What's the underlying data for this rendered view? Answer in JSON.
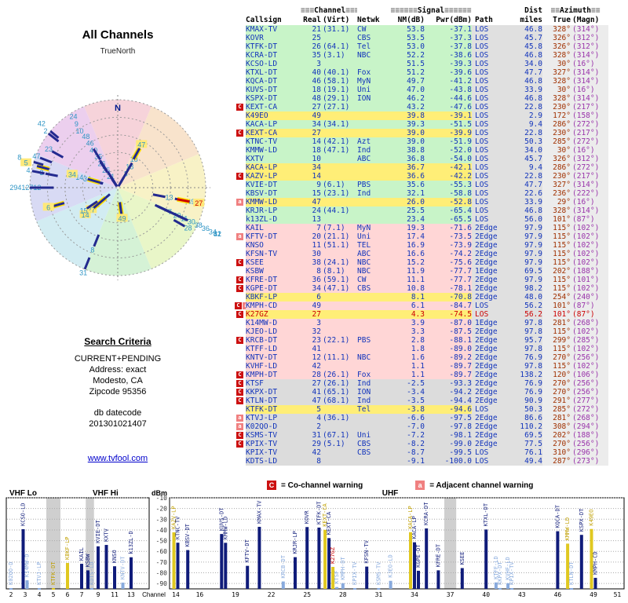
{
  "left_panel": {
    "title": "All Channels",
    "north_label": "TrueNorth",
    "compass_n": "N",
    "search_criteria": {
      "heading": "Search Criteria",
      "lines": [
        "CURRENT+PENDING",
        "Address: exact",
        "Modesto, CA",
        "Zipcode 95356"
      ],
      "db_label": "db datecode",
      "db_value": "201301021407",
      "link": "www.tvfool.com"
    }
  },
  "table": {
    "group_headers": {
      "channel": {
        "pre": "≡≡≡",
        "label": "Channel",
        "post": "≡≡≡"
      },
      "signal": {
        "pre": "≡≡≡≡≡≡",
        "label": "Signal",
        "post": "≡≡≡≡≡≡"
      },
      "dist": {
        "label": "Dist"
      },
      "azimuth": {
        "pre": "≡≡",
        "label": "Azimuth",
        "post": "≡≡"
      }
    },
    "columns": [
      "Callsign",
      "Real",
      "(Virt)",
      "Netwk",
      "NM(dB)",
      "Pwr(dBm)",
      "Path",
      "miles",
      "True",
      "(Magn)"
    ]
  },
  "legend": {
    "co": {
      "symbol": "C",
      "text": "= Co-channel warning"
    },
    "adj": {
      "symbol": "a",
      "text": "= Adjacent channel warning"
    }
  },
  "spectrum": {
    "ylabel": "dBm",
    "xlabel": "Channel",
    "bands": [
      "VHF Lo",
      "VHF Hi",
      "UHF"
    ],
    "yticks": [
      -10,
      -20,
      -30,
      -40,
      -50,
      -60,
      -70,
      -80,
      -90
    ],
    "vhf_ticks": [
      2,
      3,
      4,
      5,
      6,
      7,
      9,
      11,
      13
    ],
    "uhf_ticks": [
      14,
      16,
      19,
      22,
      25,
      28,
      31,
      34,
      37,
      40,
      43,
      46,
      49,
      51
    ],
    "reserved_channels": [
      5,
      8,
      37
    ]
  },
  "colors": {
    "quality": {
      "g": "#c8f4c8",
      "y": "#ffee77",
      "p": "#ffd6d6",
      "x": "#dcdcdc"
    },
    "path_bg": "#e0e0e0",
    "az_bg": "#ececec",
    "accent_red": "#cc1111",
    "accent_pink": "#f08080",
    "radar_wedges": [
      "#f6d3da",
      "#f8e3cc",
      "#f8f2c6",
      "#e9f6c8",
      "#d5f2d6",
      "#d2ecf2",
      "#d8daf4",
      "#eccfee"
    ]
  },
  "chart_data": {
    "type": "radar+spectrum",
    "radar": {
      "title": "All Channels",
      "rings": 5,
      "north": "N",
      "radial_axis": "signal NM(dB), strongest at center"
    },
    "spectrum_axes": {
      "x": "RF channel 2-51",
      "y": "Pwr (dBm)",
      "ylim": [
        -10,
        -100
      ]
    },
    "stations": [
      {
        "m": "",
        "cs": "KMAX-TV",
        "re": 21,
        "vi": "31.1",
        "nw": "CW",
        "nm": 53.8,
        "pw": -37.1,
        "pa": "LOS",
        "di": 46.8,
        "tr": 328,
        "mg": 314,
        "q": "g"
      },
      {
        "m": "",
        "cs": "KOVR",
        "re": 25,
        "vi": "",
        "nw": "CBS",
        "nm": 53.5,
        "pw": -37.3,
        "pa": "LOS",
        "di": 45.7,
        "tr": 326,
        "mg": 312,
        "q": "g"
      },
      {
        "m": "",
        "cs": "KTFK-DT",
        "re": 26,
        "vi": "64.1",
        "nw": "Tel",
        "nm": 53.0,
        "pw": -37.8,
        "pa": "LOS",
        "di": 45.8,
        "tr": 326,
        "mg": 312,
        "q": "g"
      },
      {
        "m": "",
        "cs": "KCRA-DT",
        "re": 35,
        "vi": "3.1",
        "nw": "NBC",
        "nm": 52.2,
        "pw": -38.6,
        "pa": "LOS",
        "di": 46.8,
        "tr": 328,
        "mg": 314,
        "q": "g"
      },
      {
        "m": "",
        "cs": "KCSO-LD",
        "re": 3,
        "vi": "",
        "nw": "",
        "nm": 51.5,
        "pw": -39.3,
        "pa": "LOS",
        "di": 34.0,
        "tr": 30,
        "mg": 16,
        "q": "g"
      },
      {
        "m": "",
        "cs": "KTXL-DT",
        "re": 40,
        "vi": "40.1",
        "nw": "Fox",
        "nm": 51.2,
        "pw": -39.6,
        "pa": "LOS",
        "di": 47.7,
        "tr": 327,
        "mg": 314,
        "q": "g"
      },
      {
        "m": "",
        "cs": "KQCA-DT",
        "re": 46,
        "vi": "58.1",
        "nw": "MyN",
        "nm": 49.7,
        "pw": -41.2,
        "pa": "LOS",
        "di": 46.8,
        "tr": 328,
        "mg": 314,
        "q": "g"
      },
      {
        "m": "",
        "cs": "KUVS-DT",
        "re": 18,
        "vi": "19.1",
        "nw": "Uni",
        "nm": 47.0,
        "pw": -43.8,
        "pa": "LOS",
        "di": 33.9,
        "tr": 30,
        "mg": 16,
        "q": "g"
      },
      {
        "m": "",
        "cs": "KSPX-DT",
        "re": 48,
        "vi": "29.1",
        "nw": "ION",
        "nm": 46.2,
        "pw": -44.6,
        "pa": "LOS",
        "di": 46.8,
        "tr": 328,
        "mg": 314,
        "q": "g"
      },
      {
        "m": "C",
        "cs": "KEXT-CA",
        "re": 27,
        "vi": "27.1",
        "nw": "",
        "nm": 43.2,
        "pw": -47.6,
        "pa": "LOS",
        "di": 22.8,
        "tr": 230,
        "mg": 217,
        "q": "g"
      },
      {
        "m": "",
        "cs": "K49EO",
        "re": 49,
        "vi": "",
        "nw": "",
        "nm": 39.8,
        "pw": -39.1,
        "pa": "LOS",
        "di": 2.9,
        "tr": 172,
        "mg": 158,
        "q": "y"
      },
      {
        "m": "",
        "cs": "KACA-LP",
        "re": 34,
        "vi": "34.1",
        "nw": "",
        "nm": 39.3,
        "pw": -51.5,
        "pa": "LOS",
        "di": 9.4,
        "tr": 286,
        "mg": 272,
        "q": "g"
      },
      {
        "m": "C",
        "cs": "KEXT-CA",
        "re": 27,
        "vi": "",
        "nw": "",
        "nm": 39.0,
        "pw": -39.9,
        "pa": "LOS",
        "di": 22.8,
        "tr": 230,
        "mg": 217,
        "q": "y"
      },
      {
        "m": "",
        "cs": "KTNC-TV",
        "re": 14,
        "vi": "42.1",
        "nw": "Azt",
        "nm": 39.0,
        "pw": -51.9,
        "pa": "LOS",
        "di": 50.3,
        "tr": 285,
        "mg": 272,
        "q": "g"
      },
      {
        "m": "",
        "cs": "KMMW-LD",
        "re": 18,
        "vi": "47.1",
        "nw": "Ind",
        "nm": 38.8,
        "pw": -52.0,
        "pa": "LOS",
        "di": 34.0,
        "tr": 30,
        "mg": 16,
        "q": "g"
      },
      {
        "m": "",
        "cs": "KXTV",
        "re": 10,
        "vi": "",
        "nw": "ABC",
        "nm": 36.8,
        "pw": -54.0,
        "pa": "LOS",
        "di": 45.7,
        "tr": 326,
        "mg": 312,
        "q": "g"
      },
      {
        "m": "",
        "cs": "KACA-LP",
        "re": 34,
        "vi": "",
        "nw": "",
        "nm": 36.7,
        "pw": -42.1,
        "pa": "LOS",
        "di": 9.4,
        "tr": 286,
        "mg": 272,
        "q": "y"
      },
      {
        "m": "C",
        "cs": "KAZV-LP",
        "re": 14,
        "vi": "",
        "nw": "",
        "nm": 36.6,
        "pw": -42.2,
        "pa": "LOS",
        "di": 22.8,
        "tr": 230,
        "mg": 217,
        "q": "y"
      },
      {
        "m": "",
        "cs": "KVIE-DT",
        "re": 9,
        "vi": "6.1",
        "nw": "PBS",
        "nm": 35.6,
        "pw": -55.3,
        "pa": "LOS",
        "di": 47.7,
        "tr": 327,
        "mg": 314,
        "q": "g"
      },
      {
        "m": "",
        "cs": "KBSV-DT",
        "re": 15,
        "vi": "23.1",
        "nw": "Ind",
        "nm": 32.1,
        "pw": -58.8,
        "pa": "LOS",
        "di": 22.6,
        "tr": 236,
        "mg": 222,
        "q": "g"
      },
      {
        "m": "a",
        "cs": "KMMW-LD",
        "re": 47,
        "vi": "",
        "nw": "",
        "nm": 26.0,
        "pw": -52.8,
        "pa": "LOS",
        "di": 33.9,
        "tr": 29,
        "mg": 16,
        "q": "y"
      },
      {
        "m": "",
        "cs": "KRJR-LP",
        "re": 24,
        "vi": "44.1",
        "nw": "",
        "nm": 25.5,
        "pw": -65.4,
        "pa": "LOS",
        "di": 46.8,
        "tr": 328,
        "mg": 314,
        "q": "g"
      },
      {
        "m": "",
        "cs": "k13ZL-D",
        "re": 13,
        "vi": "",
        "nw": "",
        "nm": 23.4,
        "pw": -65.5,
        "pa": "LOS",
        "di": 56.0,
        "tr": 101,
        "mg": 87,
        "q": "g"
      },
      {
        "m": "",
        "cs": "KAIL",
        "re": 7,
        "vi": "7.1",
        "nw": "MyN",
        "nm": 19.3,
        "pw": -71.6,
        "pa": "2Edge",
        "di": 97.9,
        "tr": 115,
        "mg": 102,
        "q": "p"
      },
      {
        "m": "a",
        "cs": "KFTV-DT",
        "re": 20,
        "vi": "21.1",
        "nw": "Uni",
        "nm": 17.4,
        "pw": -73.5,
        "pa": "2Edge",
        "di": 97.9,
        "tr": 115,
        "mg": 102,
        "q": "p"
      },
      {
        "m": "",
        "cs": "KNSO",
        "re": 11,
        "vi": "51.1",
        "nw": "TEL",
        "nm": 16.9,
        "pw": -73.9,
        "pa": "2Edge",
        "di": 97.9,
        "tr": 115,
        "mg": 102,
        "q": "p"
      },
      {
        "m": "",
        "cs": "KFSN-TV",
        "re": 30,
        "vi": "",
        "nw": "ABC",
        "nm": 16.6,
        "pw": -74.2,
        "pa": "2Edge",
        "di": 97.9,
        "tr": 115,
        "mg": 102,
        "q": "p"
      },
      {
        "m": "C",
        "cs": "KSEE",
        "re": 38,
        "vi": "24.1",
        "nw": "NBC",
        "nm": 15.2,
        "pw": -75.6,
        "pa": "2Edge",
        "di": 97.9,
        "tr": 115,
        "mg": 102,
        "q": "p"
      },
      {
        "m": "",
        "cs": "KSBW",
        "re": 8,
        "vi": "8.1",
        "nw": "NBC",
        "nm": 11.9,
        "pw": -77.7,
        "pa": "1Edge",
        "di": 69.5,
        "tr": 202,
        "mg": 188,
        "q": "p"
      },
      {
        "m": "C",
        "cs": "KFRE-DT",
        "re": 36,
        "vi": "59.1",
        "nw": "CW",
        "nm": 11.1,
        "pw": -77.7,
        "pa": "2Edge",
        "di": 97.9,
        "tr": 115,
        "mg": 101,
        "q": "p"
      },
      {
        "m": "C",
        "cs": "KGPE-DT",
        "re": 34,
        "vi": "47.1",
        "nw": "CBS",
        "nm": 10.8,
        "pw": -78.1,
        "pa": "2Edge",
        "di": 98.2,
        "tr": 115,
        "mg": 102,
        "q": "p"
      },
      {
        "m": "",
        "cs": "KBKF-LP",
        "re": 6,
        "vi": "",
        "nw": "",
        "nm": 8.1,
        "pw": -70.8,
        "pa": "2Edge",
        "di": 48.0,
        "tr": 254,
        "mg": 240,
        "q": "y"
      },
      {
        "m": "Ca",
        "cs": "KMPH-CD",
        "re": 49,
        "vi": "",
        "nw": "",
        "nm": 6.1,
        "pw": -84.7,
        "pa": "LOS",
        "di": 56.2,
        "tr": 101,
        "mg": 87,
        "q": "p"
      },
      {
        "m": "C",
        "cs": "K27GZ",
        "re": 27,
        "vi": "",
        "nw": "",
        "nm": 4.3,
        "pw": -74.5,
        "pa": "LOS",
        "di": 56.2,
        "tr": 101,
        "mg": 87,
        "q": "y",
        "red": true
      },
      {
        "m": "",
        "cs": "K14MW-D",
        "re": 3,
        "vi": "",
        "nw": "",
        "nm": 3.9,
        "pw": -87.0,
        "pa": "1Edge",
        "di": 97.8,
        "tr": 281,
        "mg": 268,
        "q": "p"
      },
      {
        "m": "",
        "cs": "KJEO-LD",
        "re": 32,
        "vi": "",
        "nw": "",
        "nm": 3.3,
        "pw": -87.5,
        "pa": "2Edge",
        "di": 97.8,
        "tr": 115,
        "mg": 102,
        "q": "p"
      },
      {
        "m": "C",
        "cs": "KRCB-DT",
        "re": 23,
        "vi": "22.1",
        "nw": "PBS",
        "nm": 2.8,
        "pw": -88.1,
        "pa": "2Edge",
        "di": 95.7,
        "tr": 299,
        "mg": 285,
        "q": "p"
      },
      {
        "m": "",
        "cs": "KTFF-LD",
        "re": 41,
        "vi": "",
        "nw": "",
        "nm": 1.8,
        "pw": -89.0,
        "pa": "2Edge",
        "di": 97.8,
        "tr": 115,
        "mg": 102,
        "q": "p"
      },
      {
        "m": "",
        "cs": "KNTV-DT",
        "re": 12,
        "vi": "11.1",
        "nw": "NBC",
        "nm": 1.6,
        "pw": -89.2,
        "pa": "2Edge",
        "di": 76.9,
        "tr": 270,
        "mg": 256,
        "q": "p"
      },
      {
        "m": "",
        "cs": "KVHF-LD",
        "re": 42,
        "vi": "",
        "nw": "",
        "nm": 1.1,
        "pw": -89.7,
        "pa": "2Edge",
        "di": 97.8,
        "tr": 115,
        "mg": 102,
        "q": "p"
      },
      {
        "m": "C",
        "cs": "KMPH-DT",
        "re": 28,
        "vi": "26.1",
        "nw": "Fox",
        "nm": 1.1,
        "pw": -89.7,
        "pa": "2Edge",
        "di": 138.2,
        "tr": 120,
        "mg": 106,
        "q": "p"
      },
      {
        "m": "C",
        "cs": "KTSF",
        "re": 27,
        "vi": "26.1",
        "nw": "Ind",
        "nm": -2.5,
        "pw": -93.3,
        "pa": "2Edge",
        "di": 76.9,
        "tr": 270,
        "mg": 256,
        "q": "x"
      },
      {
        "m": "C",
        "cs": "KKPX-DT",
        "re": 41,
        "vi": "65.1",
        "nw": "ION",
        "nm": -3.4,
        "pw": -94.2,
        "pa": "2Edge",
        "di": 76.9,
        "tr": 270,
        "mg": 256,
        "q": "x"
      },
      {
        "m": "C",
        "cs": "KTLN-DT",
        "re": 47,
        "vi": "68.1",
        "nw": "Ind",
        "nm": -3.5,
        "pw": -94.4,
        "pa": "2Edge",
        "di": 90.9,
        "tr": 291,
        "mg": 277,
        "q": "x"
      },
      {
        "m": "",
        "cs": "KTFK-DT",
        "re": 5,
        "vi": "",
        "nw": "Tel",
        "nm": -3.8,
        "pw": -94.6,
        "pa": "LOS",
        "di": 50.3,
        "tr": 285,
        "mg": 272,
        "q": "y"
      },
      {
        "m": "a",
        "cs": "KTVJ-LP",
        "re": 4,
        "vi": "36.1",
        "nw": "",
        "nm": -6.6,
        "pw": -97.5,
        "pa": "2Edge",
        "di": 86.6,
        "tr": 281,
        "mg": 268,
        "q": "x"
      },
      {
        "m": "a",
        "cs": "K02QO-D",
        "re": 2,
        "vi": "",
        "nw": "",
        "nm": -7.0,
        "pw": -97.8,
        "pa": "2Edge",
        "di": 110.2,
        "tr": 308,
        "mg": 294,
        "q": "x"
      },
      {
        "m": "C",
        "cs": "KSMS-TV",
        "re": 31,
        "vi": "67.1",
        "nw": "Uni",
        "nm": -7.2,
        "pw": -98.1,
        "pa": "2Edge",
        "di": 69.5,
        "tr": 202,
        "mg": 188,
        "q": "x"
      },
      {
        "m": "C",
        "cs": "KPIX-TV",
        "re": 29,
        "vi": "5.1",
        "nw": "CBS",
        "nm": -8.2,
        "pw": -99.0,
        "pa": "2Edge",
        "di": 77.5,
        "tr": 270,
        "mg": 256,
        "q": "x"
      },
      {
        "m": "",
        "cs": "KPIX-TV",
        "re": 42,
        "vi": "",
        "nw": "CBS",
        "nm": -8.7,
        "pw": -99.5,
        "pa": "LOS",
        "di": 76.1,
        "tr": 310,
        "mg": 296,
        "q": "x"
      },
      {
        "m": "",
        "cs": "KDTS-LD",
        "re": 8,
        "vi": "",
        "nw": "",
        "nm": -9.1,
        "pw": -100.0,
        "pa": "LOS",
        "di": 49.4,
        "tr": 287,
        "mg": 273,
        "q": "x"
      }
    ]
  }
}
